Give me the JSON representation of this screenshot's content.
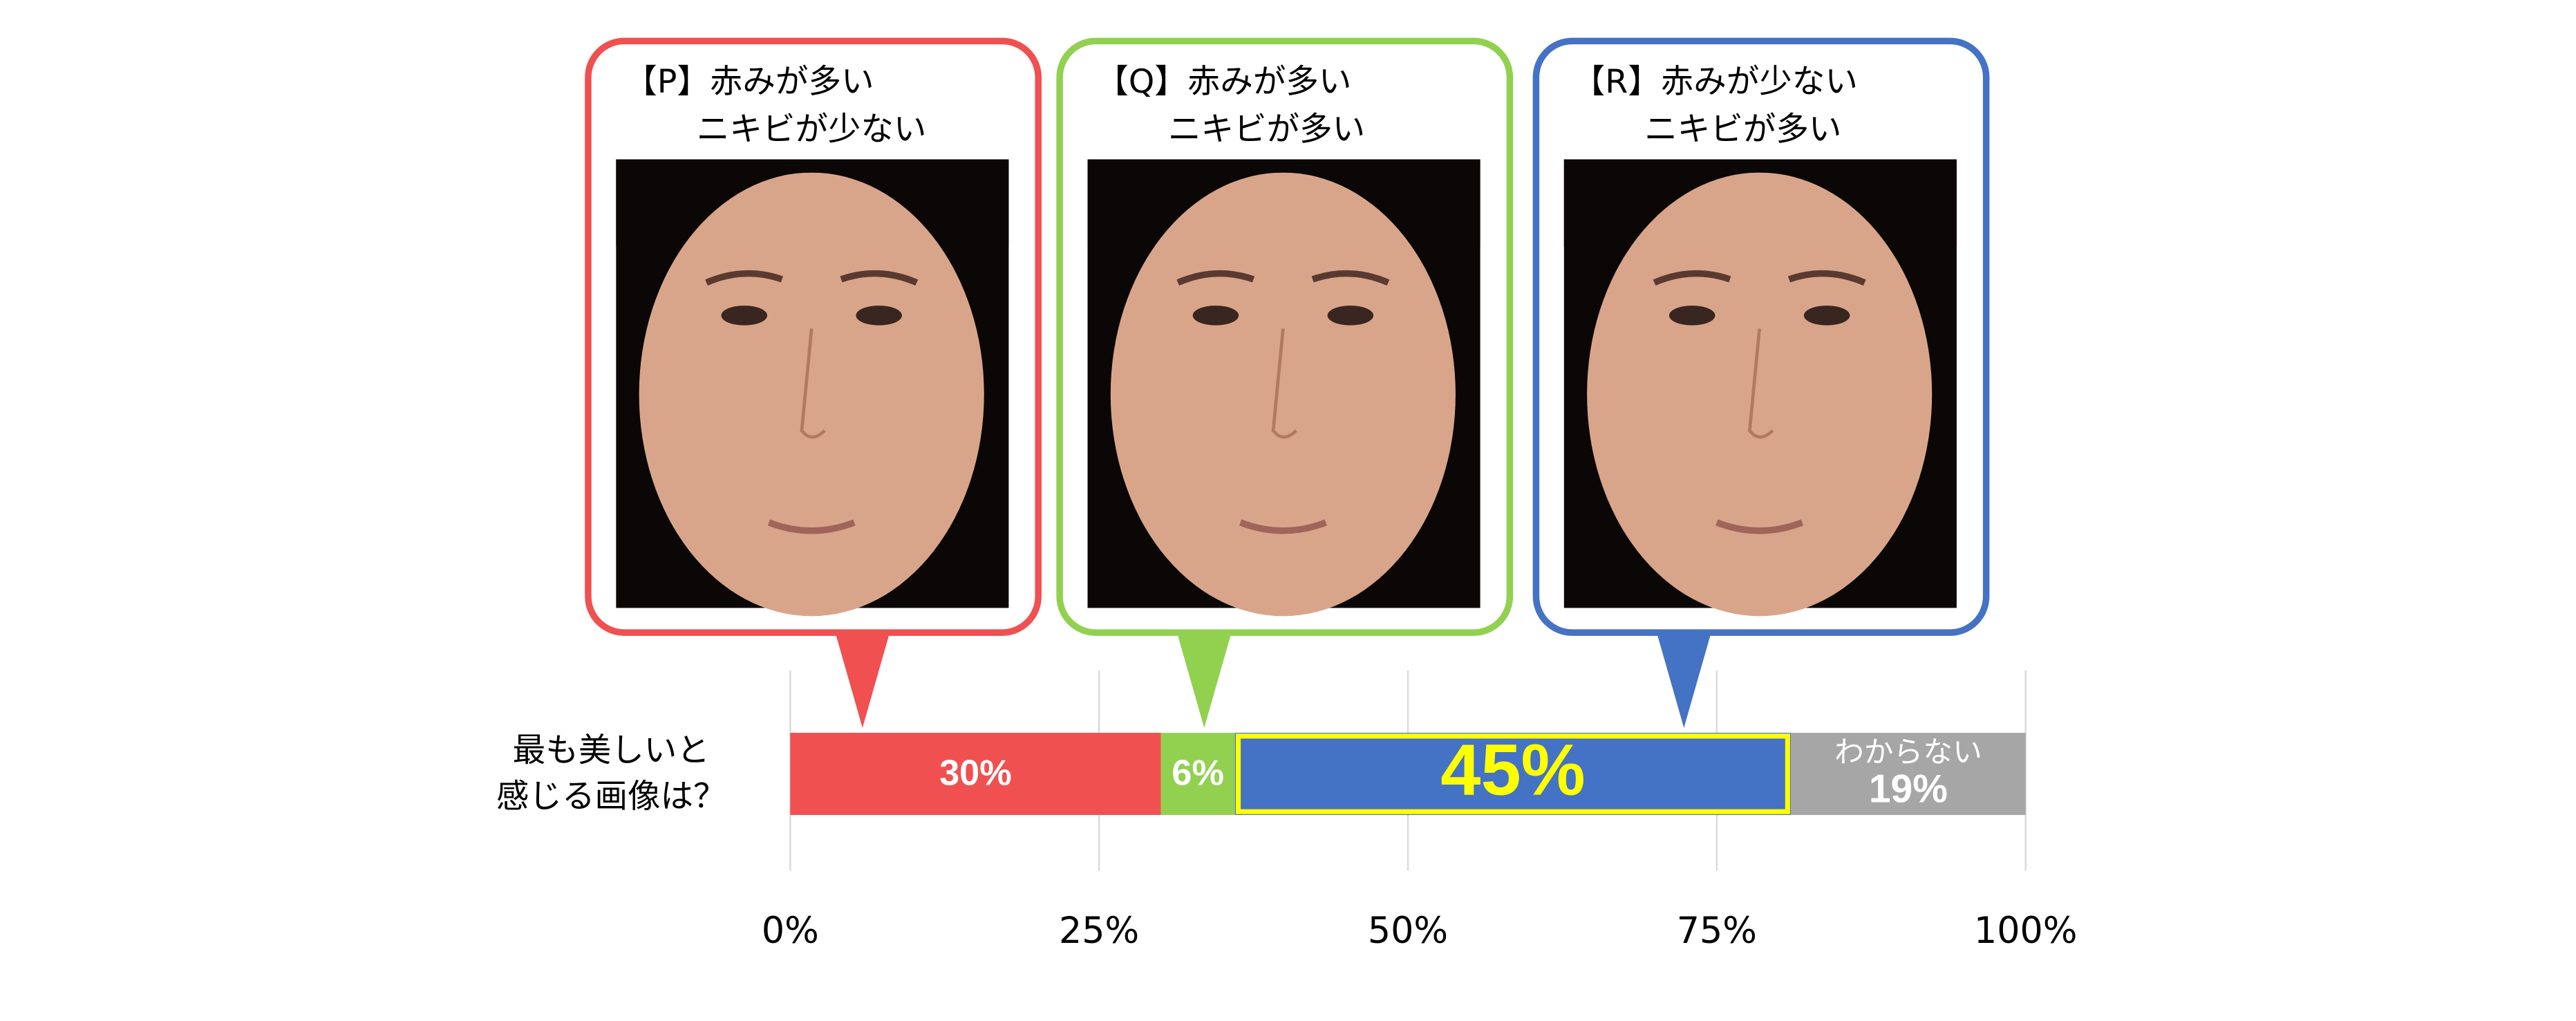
{
  "chart_data": {
    "type": "stacked_bar_horizontal",
    "categories": [
      "最も美しいと\n感じる画像は？"
    ],
    "series": [
      {
        "name": "【P】赤みが多い\nニキビが少ない",
        "color": "#f05050",
        "values": [
          30
        ],
        "value_labels": [
          "30%"
        ]
      },
      {
        "name": "【Q】赤みが多い\nニキビが多い",
        "color": "#92d050",
        "values": [
          6
        ],
        "value_labels": [
          "6%"
        ]
      },
      {
        "name": "【R】赤みが少ない\nニキビが多い",
        "color": "#4472c4",
        "values": [
          45
        ],
        "value_labels": [
          "45%"
        ]
      },
      {
        "name": "わからない",
        "color": "#a6a6a6",
        "values": [
          19
        ],
        "value_labels": [
          "19%"
        ]
      }
    ],
    "highlight_series": 2,
    "highlight_color": "#ffff00",
    "xlim": [
      0,
      100
    ],
    "xticks": [
      {
        "value": 0,
        "label": "0%"
      },
      {
        "value": 25,
        "label": "25%"
      },
      {
        "value": 50,
        "label": "50%"
      },
      {
        "value": 75,
        "label": "75%"
      },
      {
        "value": 100,
        "label": "100%"
      }
    ],
    "grid": true
  }
}
